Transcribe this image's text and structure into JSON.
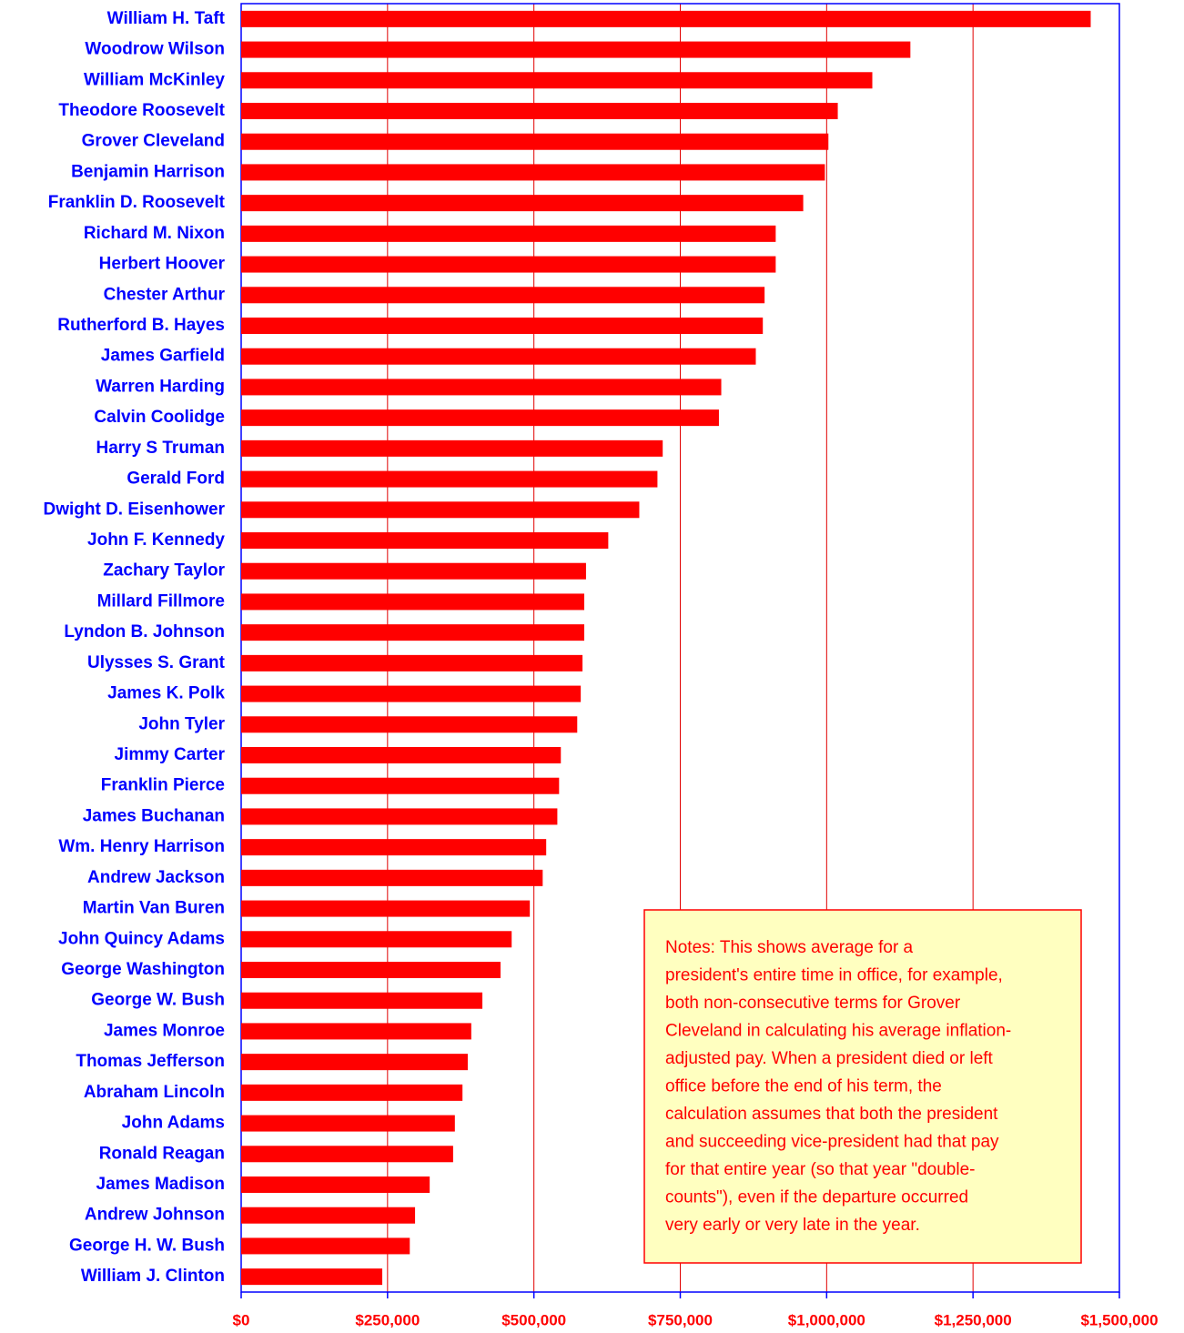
{
  "chart_data": {
    "type": "bar",
    "orientation": "horizontal",
    "categories": [
      "William H. Taft",
      "Woodrow Wilson",
      "William McKinley",
      "Theodore Roosevelt",
      "Grover Cleveland",
      "Benjamin Harrison",
      "Franklin D. Roosevelt",
      "Richard M. Nixon",
      "Herbert Hoover",
      "Chester Arthur",
      "Rutherford B. Hayes",
      "James Garfield",
      "Warren Harding",
      "Calvin Coolidge",
      "Harry S Truman",
      "Gerald Ford",
      "Dwight D. Eisenhower",
      "John F. Kennedy",
      "Zachary Taylor",
      "Millard Fillmore",
      "Lyndon B. Johnson",
      "Ulysses S. Grant",
      "James K. Polk",
      "John Tyler",
      "Jimmy Carter",
      "Franklin Pierce",
      "James Buchanan",
      "Wm. Henry Harrison",
      "Andrew Jackson",
      "Martin Van Buren",
      "John Quincy Adams",
      "George Washington",
      "George W. Bush",
      "James Monroe",
      "Thomas Jefferson",
      "Abraham Lincoln",
      "John Adams",
      "Ronald Reagan",
      "James Madison",
      "Andrew Johnson",
      "George H. W. Bush",
      "William J. Clinton"
    ],
    "values": [
      1451000,
      1143000,
      1078000,
      1019000,
      1003000,
      997000,
      960000,
      913000,
      913000,
      894000,
      891000,
      879000,
      820000,
      816000,
      720000,
      711000,
      680000,
      627000,
      589000,
      586000,
      586000,
      583000,
      580000,
      574000,
      546000,
      543000,
      540000,
      521000,
      515000,
      493000,
      462000,
      443000,
      412000,
      393000,
      387000,
      378000,
      365000,
      362000,
      322000,
      297000,
      288000,
      241000
    ],
    "color": "#ff0000",
    "xlim": [
      0,
      1500000
    ],
    "xticks": [
      {
        "value": 0,
        "label": "$0"
      },
      {
        "value": 250000,
        "label": "$250,000"
      },
      {
        "value": 500000,
        "label": "$500,000"
      },
      {
        "value": 750000,
        "label": "$750,000"
      },
      {
        "value": 1000000,
        "label": "$1,000,000"
      },
      {
        "value": 1250000,
        "label": "$1,250,000"
      },
      {
        "value": 1500000,
        "label": "$1,500,000"
      }
    ],
    "grid": true,
    "note_lines": [
      "Notes:  This shows average for a",
      "president's entire time in office, for example,",
      "both non-consecutive terms for Grover",
      "Cleveland in calculating his average inflation-",
      "adjusted pay.  When a president died or left",
      "office before the end of his term, the",
      "calculation assumes that both the president",
      "and succeeding vice-president had that pay",
      "for that entire year (so that year \"double-",
      "counts\"), even if the departure occurred",
      "very early or very late in the year."
    ]
  }
}
